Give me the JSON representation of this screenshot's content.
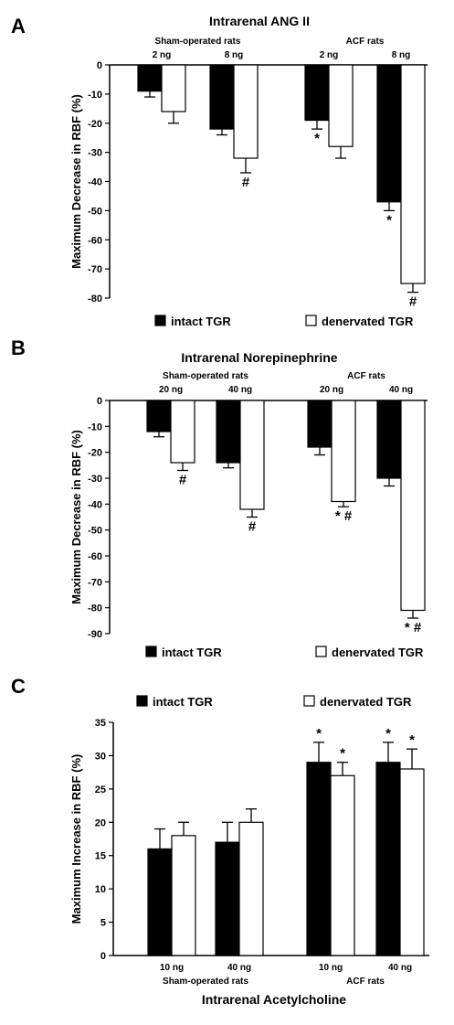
{
  "chart_data": [
    {
      "panel": "A",
      "type": "bar",
      "title": "Intrarenal ANG II",
      "ylabel": "Maximum Decrease in RBF (%)",
      "ylim": [
        -80,
        0
      ],
      "yticks": [
        0,
        -10,
        -20,
        -30,
        -40,
        -50,
        -60,
        -70,
        -80
      ],
      "groups": [
        {
          "label": "Sham-operated rats",
          "doses": [
            "2 ng",
            "8 ng"
          ]
        },
        {
          "label": "ACF rats",
          "doses": [
            "2 ng",
            "8 ng"
          ]
        }
      ],
      "series": [
        {
          "name": "intact TGR",
          "color": "#000000",
          "values": [
            -9,
            -22,
            -19,
            -47
          ],
          "errors": [
            2,
            2,
            3,
            3
          ]
        },
        {
          "name": "denervated TGR",
          "color": "#ffffff",
          "values": [
            -16,
            -32,
            -28,
            -75
          ],
          "errors": [
            4,
            5,
            4,
            3
          ]
        }
      ],
      "annotations": [
        {
          "series": 0,
          "index": 2,
          "text": "*"
        },
        {
          "series": 0,
          "index": 3,
          "text": "*"
        },
        {
          "series": 1,
          "index": 1,
          "text": "#"
        },
        {
          "series": 1,
          "index": 3,
          "text": "#"
        }
      ],
      "legend": "bottom"
    },
    {
      "panel": "B",
      "type": "bar",
      "title": "Intrarenal Norepinephrine",
      "ylabel": "Maximum Decrease in RBF (%)",
      "ylim": [
        -90,
        0
      ],
      "yticks": [
        0,
        -10,
        -20,
        -30,
        -40,
        -50,
        -60,
        -70,
        -80,
        -90
      ],
      "groups": [
        {
          "label": "Sham-operated rats",
          "doses": [
            "20 ng",
            "40 ng"
          ]
        },
        {
          "label": "ACF rats",
          "doses": [
            "20 ng",
            "40 ng"
          ]
        }
      ],
      "series": [
        {
          "name": "intact TGR",
          "color": "#000000",
          "values": [
            -12,
            -24,
            -18,
            -30
          ],
          "errors": [
            2,
            2,
            3,
            3
          ]
        },
        {
          "name": "denervated TGR",
          "color": "#ffffff",
          "values": [
            -24,
            -42,
            -39,
            -81
          ],
          "errors": [
            3,
            3,
            2,
            3
          ]
        }
      ],
      "annotations": [
        {
          "series": 1,
          "index": 0,
          "text": "#"
        },
        {
          "series": 1,
          "index": 1,
          "text": "#"
        },
        {
          "series": 1,
          "index": 2,
          "text": "* #"
        },
        {
          "series": 1,
          "index": 3,
          "text": "* #"
        }
      ],
      "legend": "bottom"
    },
    {
      "panel": "C",
      "type": "bar",
      "ylabel": "Maximum Increase in RBF (%)",
      "xlabel": "Intrarenal Acetylcholine",
      "ylim": [
        0,
        35
      ],
      "yticks": [
        0,
        5,
        10,
        15,
        20,
        25,
        30,
        35
      ],
      "groups": [
        {
          "label": "Sham-operated rats",
          "doses": [
            "10 ng",
            "40 ng"
          ]
        },
        {
          "label": "ACF rats",
          "doses": [
            "10 ng",
            "40 ng"
          ]
        }
      ],
      "series": [
        {
          "name": "intact TGR",
          "color": "#000000",
          "values": [
            16,
            17,
            29,
            29
          ],
          "errors": [
            3,
            3,
            3,
            3
          ]
        },
        {
          "name": "denervated TGR",
          "color": "#ffffff",
          "values": [
            18,
            20,
            27,
            28
          ],
          "errors": [
            2,
            2,
            2,
            3
          ]
        }
      ],
      "annotations": [
        {
          "series": 0,
          "index": 2,
          "text": "*"
        },
        {
          "series": 1,
          "index": 2,
          "text": "*"
        },
        {
          "series": 0,
          "index": 3,
          "text": "*"
        },
        {
          "series": 1,
          "index": 3,
          "text": "*"
        }
      ],
      "legend": "top"
    }
  ]
}
